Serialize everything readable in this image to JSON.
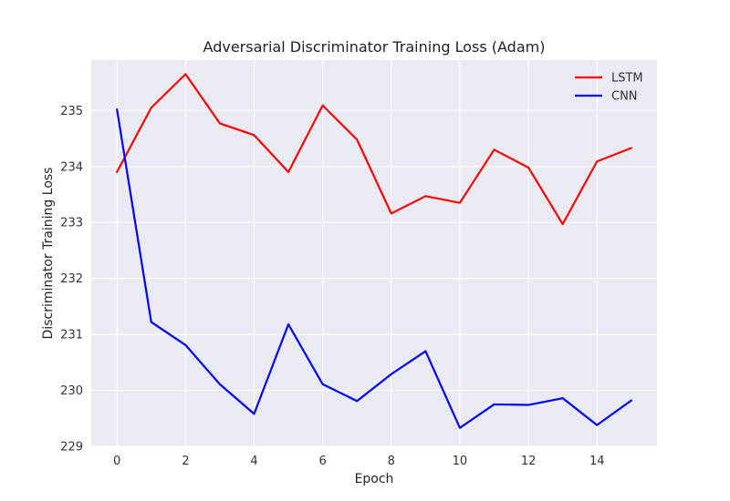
{
  "chart_data": {
    "type": "line",
    "title": "Adversarial Discriminator Training Loss (Adam)",
    "xlabel": "Epoch",
    "ylabel": "Discriminator Training Loss",
    "x": [
      0,
      1,
      2,
      3,
      4,
      5,
      6,
      7,
      8,
      9,
      10,
      11,
      12,
      13,
      14,
      15
    ],
    "xlim": [
      -0.75,
      15.75
    ],
    "ylim": [
      229,
      235.9
    ],
    "xticks": [
      0,
      2,
      4,
      6,
      8,
      10,
      12,
      14
    ],
    "yticks": [
      229,
      230,
      231,
      232,
      233,
      234,
      235
    ],
    "grid": true,
    "legend_position": "upper right",
    "series": [
      {
        "name": "LSTM",
        "color": "#ff0000",
        "values": [
          233.9,
          235.05,
          235.65,
          234.77,
          234.56,
          233.9,
          235.09,
          234.48,
          233.16,
          233.47,
          233.35,
          234.3,
          233.98,
          232.97,
          234.09,
          234.33
        ]
      },
      {
        "name": "CNN",
        "color": "#0000ff",
        "values": [
          235.02,
          231.22,
          230.81,
          230.11,
          229.58,
          231.18,
          230.11,
          229.81,
          230.29,
          230.7,
          229.33,
          229.75,
          229.74,
          229.86,
          229.38,
          229.82
        ]
      }
    ]
  },
  "colors": {
    "plot_background": "#eaeaf2",
    "grid": "#ffffff"
  }
}
